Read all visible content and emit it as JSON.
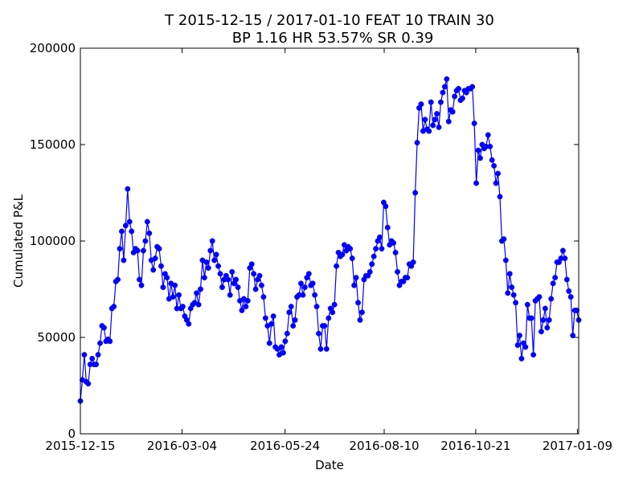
{
  "chart_data": {
    "type": "line",
    "title": "T 2015-12-15 / 2017-01-10 FEAT 10 TRAIN 30",
    "subtitle": "BP 1.16 HR 53.57%  SR 0.39",
    "xlabel": "Date",
    "ylabel": "Cumulated P&L",
    "xlim": [
      "2015-12-15",
      "2017-01-10"
    ],
    "ylim": [
      0,
      200000
    ],
    "x_ticks": [
      "2015-12-15",
      "2016-03-04",
      "2016-05-24",
      "2016-08-10",
      "2016-10-21",
      "2017-01-09"
    ],
    "y_ticks": [
      0,
      50000,
      100000,
      150000,
      200000
    ],
    "y_tick_labels": [
      "0",
      "50000",
      "100000",
      "150000",
      "200000"
    ],
    "grid": false,
    "legend": "none",
    "series_color": "#0000ff",
    "marker": "circle",
    "series": [
      {
        "values": [
          17000,
          28000,
          41000,
          27000,
          26000,
          36000,
          39000,
          36000,
          36000,
          41000,
          47000,
          56000,
          55000,
          48000,
          49000,
          48000,
          65000,
          66000,
          79000,
          80000,
          96000,
          105000,
          90000,
          108000,
          127000,
          110000,
          105000,
          94000,
          96000,
          95000,
          80000,
          77000,
          95000,
          100000,
          110000,
          104000,
          90000,
          85000,
          91000,
          97000,
          96000,
          87000,
          76000,
          83000,
          81000,
          70000,
          78000,
          71000,
          77000,
          65000,
          72000,
          65000,
          66000,
          61000,
          59000,
          57000,
          65000,
          67000,
          68000,
          73000,
          67000,
          75000,
          90000,
          81000,
          89000,
          86000,
          95000,
          100000,
          90000,
          93000,
          87000,
          83000,
          76000,
          80000,
          82000,
          80000,
          72000,
          84000,
          78000,
          80000,
          76000,
          69000,
          64000,
          70000,
          66000,
          69000,
          86000,
          88000,
          83000,
          75000,
          80000,
          82000,
          77000,
          71000,
          60000,
          56000,
          47000,
          57000,
          61000,
          45000,
          44000,
          41000,
          45000,
          42000,
          48000,
          52000,
          63000,
          66000,
          56000,
          59000,
          71000,
          72000,
          78000,
          72000,
          76000,
          81000,
          83000,
          77000,
          78000,
          72000,
          66000,
          52000,
          44000,
          56000,
          56000,
          44000,
          60000,
          65000,
          63000,
          67000,
          87000,
          94000,
          92000,
          93000,
          98000,
          95000,
          97000,
          96000,
          91000,
          77000,
          81000,
          68000,
          59000,
          63000,
          80000,
          82000,
          82000,
          84000,
          88000,
          92000,
          96000,
          100000,
          102000,
          96000,
          120000,
          118000,
          107000,
          98000,
          100000,
          99000,
          94000,
          84000,
          77000,
          79000,
          79000,
          81000,
          81000,
          88000,
          87000,
          89000,
          125000,
          151000,
          169000,
          171000,
          157000,
          163000,
          158000,
          157000,
          172000,
          160000,
          163000,
          166000,
          159000,
          172000,
          177000,
          180000,
          184000,
          162000,
          168000,
          167000,
          175000,
          178000,
          179000,
          173000,
          174000,
          178000,
          177000,
          179000,
          179000,
          180000,
          161000,
          130000,
          147000,
          143000,
          150000,
          148000,
          149000,
          155000,
          149000,
          142000,
          139000,
          130000,
          135000,
          123000,
          100000,
          101000,
          90000,
          73000,
          83000,
          76000,
          72000,
          68000,
          46000,
          51000,
          39000,
          47000,
          45000,
          67000,
          60000,
          60000,
          41000,
          69000,
          70000,
          71000,
          53000,
          59000,
          65000,
          55000,
          59000,
          70000,
          78000,
          81000,
          89000,
          89000,
          91000,
          95000,
          91000,
          80000,
          74000,
          71000,
          51000,
          64000,
          64000,
          59000
        ]
      }
    ]
  }
}
